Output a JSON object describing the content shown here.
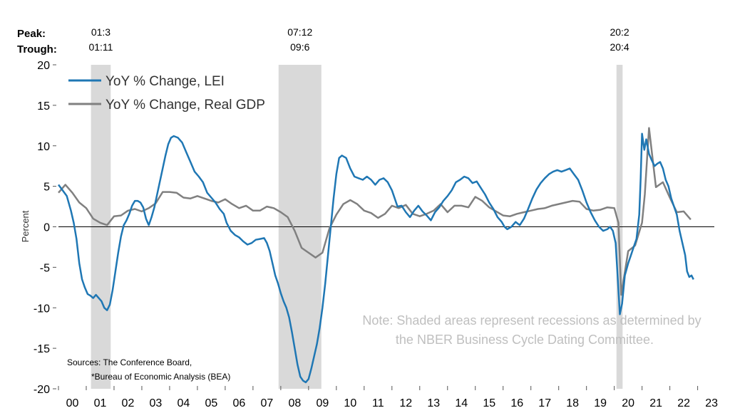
{
  "peak_label": "Peak:",
  "trough_label": "Trough:",
  "recessions": [
    {
      "peak": "01:3",
      "trough": "01:11",
      "start": 2001.17,
      "end": 2001.88
    },
    {
      "peak": "07:12",
      "trough": "09:6",
      "start": 2007.92,
      "end": 2009.46
    },
    {
      "peak": "20:2",
      "trough": "20:4",
      "start": 2020.08,
      "end": 2020.3
    }
  ],
  "note_lines": [
    "Note: Shaded areas represent recessions as determined by",
    "the NBER Business Cycle Dating Committee."
  ],
  "sources_lines": [
    "Sources: The Conference Board,",
    "*Bureau of Economic Analysis (BEA)"
  ],
  "colors": {
    "lei": "#1f77b4",
    "gdp": "#808080",
    "recession": "#d9d9d9",
    "note": "#bfbfbf"
  },
  "chart_data": {
    "type": "line",
    "title": "",
    "xlabel": "",
    "ylabel": "Percent",
    "xlim": [
      2000,
      2023.6
    ],
    "ylim": [
      -20,
      20
    ],
    "yticks": [
      20,
      15,
      10,
      5,
      0,
      -5,
      -10,
      -15,
      -20
    ],
    "xticks": [
      "00",
      "01",
      "02",
      "03",
      "04",
      "05",
      "06",
      "07",
      "08",
      "09",
      "10",
      "11",
      "12",
      "13",
      "14",
      "15",
      "16",
      "17",
      "18",
      "19",
      "20",
      "21",
      "22",
      "23"
    ],
    "grid": false,
    "legend_position": "top-left",
    "series": [
      {
        "name": "YoY % Change, LEI",
        "color": "#1f77b4",
        "points": [
          [
            2000.0,
            5.2
          ],
          [
            2000.15,
            4.5
          ],
          [
            2000.3,
            3.8
          ],
          [
            2000.45,
            2.0
          ],
          [
            2000.55,
            0.5
          ],
          [
            2000.65,
            -1.5
          ],
          [
            2000.75,
            -4.5
          ],
          [
            2000.85,
            -6.5
          ],
          [
            2000.95,
            -7.5
          ],
          [
            2001.05,
            -8.3
          ],
          [
            2001.15,
            -8.5
          ],
          [
            2001.25,
            -8.8
          ],
          [
            2001.35,
            -8.4
          ],
          [
            2001.45,
            -8.8
          ],
          [
            2001.55,
            -9.2
          ],
          [
            2001.65,
            -10.0
          ],
          [
            2001.75,
            -10.3
          ],
          [
            2001.85,
            -9.6
          ],
          [
            2001.95,
            -7.8
          ],
          [
            2002.05,
            -5.5
          ],
          [
            2002.15,
            -3.2
          ],
          [
            2002.25,
            -1.2
          ],
          [
            2002.35,
            0.2
          ],
          [
            2002.45,
            0.8
          ],
          [
            2002.55,
            1.6
          ],
          [
            2002.65,
            2.6
          ],
          [
            2002.75,
            3.2
          ],
          [
            2002.85,
            3.2
          ],
          [
            2002.95,
            3.0
          ],
          [
            2003.05,
            2.4
          ],
          [
            2003.15,
            1.0
          ],
          [
            2003.25,
            0.2
          ],
          [
            2003.35,
            1.2
          ],
          [
            2003.45,
            2.4
          ],
          [
            2003.55,
            4.0
          ],
          [
            2003.65,
            5.6
          ],
          [
            2003.75,
            7.2
          ],
          [
            2003.85,
            8.8
          ],
          [
            2003.95,
            10.2
          ],
          [
            2004.05,
            11.0
          ],
          [
            2004.15,
            11.2
          ],
          [
            2004.3,
            11.0
          ],
          [
            2004.45,
            10.4
          ],
          [
            2004.6,
            9.2
          ],
          [
            2004.75,
            8.0
          ],
          [
            2004.9,
            6.8
          ],
          [
            2005.05,
            6.2
          ],
          [
            2005.2,
            5.5
          ],
          [
            2005.35,
            4.2
          ],
          [
            2005.5,
            3.6
          ],
          [
            2005.65,
            3.0
          ],
          [
            2005.8,
            2.2
          ],
          [
            2005.95,
            1.6
          ],
          [
            2006.05,
            0.5
          ],
          [
            2006.2,
            -0.5
          ],
          [
            2006.35,
            -1.0
          ],
          [
            2006.5,
            -1.3
          ],
          [
            2006.65,
            -1.8
          ],
          [
            2006.8,
            -2.2
          ],
          [
            2006.95,
            -2.0
          ],
          [
            2007.1,
            -1.6
          ],
          [
            2007.25,
            -1.5
          ],
          [
            2007.4,
            -1.4
          ],
          [
            2007.5,
            -2.0
          ],
          [
            2007.6,
            -3.0
          ],
          [
            2007.7,
            -4.5
          ],
          [
            2007.8,
            -6.0
          ],
          [
            2007.9,
            -7.0
          ],
          [
            2008.0,
            -8.2
          ],
          [
            2008.1,
            -9.2
          ],
          [
            2008.2,
            -10.0
          ],
          [
            2008.3,
            -11.2
          ],
          [
            2008.4,
            -13.0
          ],
          [
            2008.5,
            -15.0
          ],
          [
            2008.6,
            -17.0
          ],
          [
            2008.7,
            -18.5
          ],
          [
            2008.8,
            -19.0
          ],
          [
            2008.9,
            -19.2
          ],
          [
            2009.0,
            -18.8
          ],
          [
            2009.1,
            -17.5
          ],
          [
            2009.2,
            -16.0
          ],
          [
            2009.3,
            -14.5
          ],
          [
            2009.4,
            -12.5
          ],
          [
            2009.5,
            -10.0
          ],
          [
            2009.6,
            -7.0
          ],
          [
            2009.7,
            -3.5
          ],
          [
            2009.8,
            0.0
          ],
          [
            2009.9,
            3.5
          ],
          [
            2010.0,
            6.5
          ],
          [
            2010.1,
            8.5
          ],
          [
            2010.2,
            8.8
          ],
          [
            2010.35,
            8.5
          ],
          [
            2010.5,
            7.2
          ],
          [
            2010.65,
            6.2
          ],
          [
            2010.8,
            6.0
          ],
          [
            2010.95,
            5.8
          ],
          [
            2011.1,
            6.2
          ],
          [
            2011.25,
            5.8
          ],
          [
            2011.4,
            5.2
          ],
          [
            2011.55,
            5.8
          ],
          [
            2011.7,
            6.0
          ],
          [
            2011.85,
            5.5
          ],
          [
            2012.0,
            4.5
          ],
          [
            2012.1,
            3.5
          ],
          [
            2012.2,
            2.5
          ],
          [
            2012.35,
            2.6
          ],
          [
            2012.5,
            1.8
          ],
          [
            2012.65,
            1.2
          ],
          [
            2012.8,
            2.0
          ],
          [
            2012.95,
            2.6
          ],
          [
            2013.1,
            1.9
          ],
          [
            2013.25,
            1.4
          ],
          [
            2013.4,
            0.8
          ],
          [
            2013.55,
            1.8
          ],
          [
            2013.7,
            2.4
          ],
          [
            2013.85,
            3.2
          ],
          [
            2014.0,
            3.8
          ],
          [
            2014.15,
            4.5
          ],
          [
            2014.3,
            5.5
          ],
          [
            2014.45,
            5.8
          ],
          [
            2014.6,
            6.2
          ],
          [
            2014.75,
            6.0
          ],
          [
            2014.9,
            5.4
          ],
          [
            2015.05,
            5.6
          ],
          [
            2015.2,
            4.8
          ],
          [
            2015.35,
            4.0
          ],
          [
            2015.5,
            3.0
          ],
          [
            2015.65,
            2.2
          ],
          [
            2015.8,
            1.2
          ],
          [
            2015.95,
            0.6
          ],
          [
            2016.05,
            0.0
          ],
          [
            2016.15,
            -0.3
          ],
          [
            2016.3,
            0.0
          ],
          [
            2016.45,
            0.6
          ],
          [
            2016.6,
            0.2
          ],
          [
            2016.75,
            1.0
          ],
          [
            2016.9,
            2.2
          ],
          [
            2017.05,
            3.5
          ],
          [
            2017.2,
            4.6
          ],
          [
            2017.35,
            5.4
          ],
          [
            2017.5,
            6.0
          ],
          [
            2017.65,
            6.5
          ],
          [
            2017.8,
            6.8
          ],
          [
            2017.95,
            7.0
          ],
          [
            2018.1,
            6.8
          ],
          [
            2018.25,
            7.0
          ],
          [
            2018.4,
            7.2
          ],
          [
            2018.55,
            6.5
          ],
          [
            2018.7,
            5.8
          ],
          [
            2018.85,
            4.5
          ],
          [
            2019.0,
            3.0
          ],
          [
            2019.15,
            1.8
          ],
          [
            2019.3,
            0.8
          ],
          [
            2019.45,
            0.0
          ],
          [
            2019.6,
            -0.5
          ],
          [
            2019.75,
            -0.3
          ],
          [
            2019.85,
            0.0
          ],
          [
            2019.95,
            -0.5
          ],
          [
            2020.05,
            -2.0
          ],
          [
            2020.12,
            -6.0
          ],
          [
            2020.2,
            -10.8
          ],
          [
            2020.28,
            -9.5
          ],
          [
            2020.38,
            -6.0
          ],
          [
            2020.5,
            -4.5
          ],
          [
            2020.6,
            -3.5
          ],
          [
            2020.7,
            -2.5
          ],
          [
            2020.8,
            -1.5
          ],
          [
            2020.9,
            1.5
          ],
          [
            2020.95,
            6.0
          ],
          [
            2021.0,
            11.5
          ],
          [
            2021.08,
            9.5
          ],
          [
            2021.15,
            10.8
          ],
          [
            2021.25,
            9.0
          ],
          [
            2021.35,
            8.2
          ],
          [
            2021.45,
            7.5
          ],
          [
            2021.55,
            7.8
          ],
          [
            2021.65,
            8.0
          ],
          [
            2021.75,
            7.2
          ],
          [
            2021.85,
            5.8
          ],
          [
            2021.95,
            5.0
          ],
          [
            2022.05,
            3.5
          ],
          [
            2022.15,
            2.5
          ],
          [
            2022.25,
            1.5
          ],
          [
            2022.35,
            -0.5
          ],
          [
            2022.45,
            -2.0
          ],
          [
            2022.55,
            -3.5
          ],
          [
            2022.62,
            -5.5
          ],
          [
            2022.7,
            -6.2
          ],
          [
            2022.78,
            -6.0
          ],
          [
            2022.85,
            -6.5
          ]
        ]
      },
      {
        "name": "YoY % Change, Real GDP",
        "color": "#808080",
        "points": [
          [
            2000.0,
            4.2
          ],
          [
            2000.25,
            5.2
          ],
          [
            2000.5,
            4.2
          ],
          [
            2000.75,
            3.0
          ],
          [
            2001.0,
            2.3
          ],
          [
            2001.25,
            1.0
          ],
          [
            2001.5,
            0.5
          ],
          [
            2001.75,
            0.2
          ],
          [
            2002.0,
            1.3
          ],
          [
            2002.25,
            1.4
          ],
          [
            2002.5,
            2.0
          ],
          [
            2002.75,
            2.2
          ],
          [
            2003.0,
            1.9
          ],
          [
            2003.25,
            2.3
          ],
          [
            2003.5,
            2.9
          ],
          [
            2003.75,
            4.3
          ],
          [
            2004.0,
            4.3
          ],
          [
            2004.25,
            4.2
          ],
          [
            2004.5,
            3.6
          ],
          [
            2004.75,
            3.5
          ],
          [
            2005.0,
            3.8
          ],
          [
            2005.25,
            3.5
          ],
          [
            2005.5,
            3.2
          ],
          [
            2005.75,
            3.0
          ],
          [
            2006.0,
            3.4
          ],
          [
            2006.25,
            2.8
          ],
          [
            2006.5,
            2.3
          ],
          [
            2006.75,
            2.6
          ],
          [
            2007.0,
            2.0
          ],
          [
            2007.25,
            2.0
          ],
          [
            2007.5,
            2.5
          ],
          [
            2007.75,
            2.3
          ],
          [
            2008.0,
            1.8
          ],
          [
            2008.25,
            1.2
          ],
          [
            2008.5,
            -0.5
          ],
          [
            2008.75,
            -2.6
          ],
          [
            2009.0,
            -3.2
          ],
          [
            2009.25,
            -3.8
          ],
          [
            2009.5,
            -3.2
          ],
          [
            2009.75,
            -0.2
          ],
          [
            2010.0,
            1.5
          ],
          [
            2010.25,
            2.8
          ],
          [
            2010.5,
            3.3
          ],
          [
            2010.75,
            2.8
          ],
          [
            2011.0,
            2.0
          ],
          [
            2011.25,
            1.7
          ],
          [
            2011.5,
            1.1
          ],
          [
            2011.75,
            1.6
          ],
          [
            2012.0,
            2.6
          ],
          [
            2012.25,
            2.3
          ],
          [
            2012.5,
            2.7
          ],
          [
            2012.75,
            1.6
          ],
          [
            2013.0,
            1.3
          ],
          [
            2013.25,
            1.6
          ],
          [
            2013.5,
            2.0
          ],
          [
            2013.75,
            2.8
          ],
          [
            2014.0,
            1.8
          ],
          [
            2014.25,
            2.6
          ],
          [
            2014.5,
            2.6
          ],
          [
            2014.75,
            2.4
          ],
          [
            2015.0,
            3.7
          ],
          [
            2015.25,
            3.2
          ],
          [
            2015.5,
            2.4
          ],
          [
            2015.75,
            1.9
          ],
          [
            2016.0,
            1.4
          ],
          [
            2016.25,
            1.3
          ],
          [
            2016.5,
            1.6
          ],
          [
            2016.75,
            1.8
          ],
          [
            2017.0,
            2.0
          ],
          [
            2017.25,
            2.2
          ],
          [
            2017.5,
            2.3
          ],
          [
            2017.75,
            2.6
          ],
          [
            2018.0,
            2.8
          ],
          [
            2018.25,
            3.0
          ],
          [
            2018.5,
            3.2
          ],
          [
            2018.75,
            3.1
          ],
          [
            2019.0,
            2.2
          ],
          [
            2019.25,
            2.0
          ],
          [
            2019.5,
            2.1
          ],
          [
            2019.75,
            2.4
          ],
          [
            2020.0,
            2.3
          ],
          [
            2020.15,
            0.5
          ],
          [
            2020.25,
            -8.4
          ],
          [
            2020.5,
            -3.0
          ],
          [
            2020.75,
            -2.3
          ],
          [
            2021.0,
            0.5
          ],
          [
            2021.1,
            4.0
          ],
          [
            2021.25,
            12.2
          ],
          [
            2021.5,
            4.9
          ],
          [
            2021.75,
            5.5
          ],
          [
            2022.0,
            3.6
          ],
          [
            2022.25,
            1.8
          ],
          [
            2022.5,
            1.9
          ],
          [
            2022.75,
            0.9
          ]
        ]
      }
    ]
  }
}
